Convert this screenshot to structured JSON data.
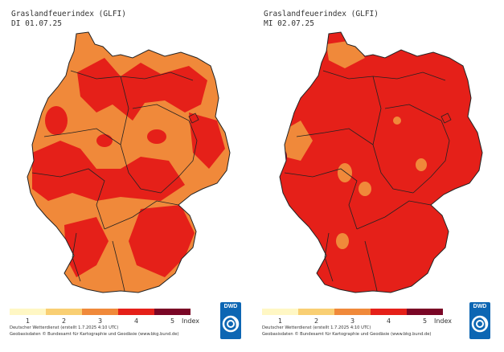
{
  "legend": {
    "labels": [
      "1",
      "2",
      "3",
      "4",
      "5"
    ],
    "unit": "Index",
    "colors": [
      "#fff7c4",
      "#f9cf73",
      "#f0893a",
      "#e52019",
      "#7a0626"
    ]
  },
  "credits": {
    "line1": "Deutscher Wetterdienst (erstellt 1.7.2025 4:10 UTC)",
    "line2": "Geobasisdaten © Bundesamt für Kartographie und Geodäsie (www.bkg.bund.de)"
  },
  "logo": {
    "text": "DWD"
  },
  "maps": [
    {
      "title": "Graslandfeuerindex (GLFI)",
      "date": "DI 01.07.25",
      "base_level": 3,
      "level_fractions": {
        "3": 0.5,
        "4": 0.5
      }
    },
    {
      "title": "Graslandfeuerindex (GLFI)",
      "date": "MI 02.07.25",
      "base_level": 4,
      "level_fractions": {
        "3": 0.1,
        "4": 0.89,
        "5": 0.01
      }
    }
  ]
}
